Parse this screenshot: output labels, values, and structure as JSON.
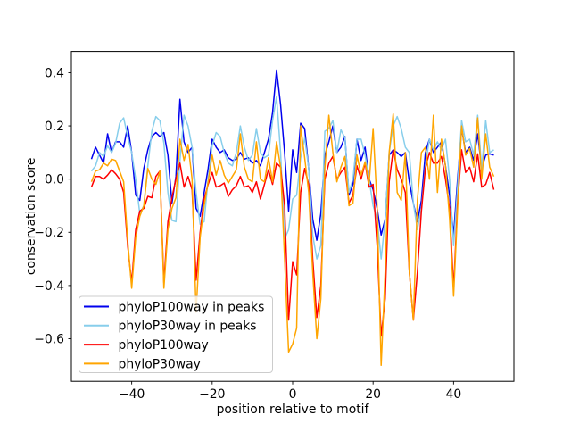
{
  "figure": {
    "background": "#ffffff",
    "frame_color": "#000000"
  },
  "legend": {
    "position": "lower left",
    "border_color": "#cccccc",
    "background": "#ffffff"
  },
  "chart_data": {
    "type": "line",
    "title": "",
    "xlabel": "position relative to motif",
    "ylabel": "conservation score",
    "xlim": [
      -55,
      55
    ],
    "ylim": [
      -0.76,
      0.48
    ],
    "xticks": [
      -40,
      -20,
      0,
      20,
      40
    ],
    "yticks": [
      0.4,
      0.2,
      0.0,
      -0.2,
      -0.4,
      -0.6
    ],
    "grid": false,
    "legend_position": "lower left",
    "x": [
      -50,
      -49,
      -48,
      -47,
      -46,
      -45,
      -44,
      -43,
      -42,
      -41,
      -40,
      -39,
      -38,
      -37,
      -36,
      -35,
      -34,
      -33,
      -32,
      -31,
      -30,
      -29,
      -28,
      -27,
      -26,
      -25,
      -24,
      -23,
      -22,
      -21,
      -20,
      -19,
      -18,
      -17,
      -16,
      -15,
      -14,
      -13,
      -12,
      -11,
      -10,
      -9,
      -8,
      -7,
      -6,
      -5,
      -4,
      -3,
      -2,
      -1,
      0,
      1,
      2,
      3,
      4,
      5,
      6,
      7,
      8,
      9,
      10,
      11,
      12,
      13,
      14,
      15,
      16,
      17,
      18,
      19,
      20,
      21,
      22,
      23,
      24,
      25,
      26,
      27,
      28,
      29,
      30,
      31,
      32,
      33,
      34,
      35,
      36,
      37,
      38,
      39,
      40,
      41,
      42,
      43,
      44,
      45,
      46,
      47,
      48,
      49,
      50
    ],
    "series": [
      {
        "name": "phyloP100way in peaks",
        "color": "#0000ee",
        "values": [
          0.075,
          0.12,
          0.09,
          0.06,
          0.17,
          0.1,
          0.14,
          0.14,
          0.12,
          0.2,
          0.1,
          -0.06,
          -0.08,
          0.04,
          0.11,
          0.16,
          0.175,
          0.16,
          0.175,
          0.09,
          -0.09,
          0.01,
          0.3,
          0.14,
          0.1,
          0.12,
          -0.11,
          -0.14,
          -0.05,
          0.04,
          0.15,
          0.12,
          0.1,
          0.11,
          0.08,
          0.07,
          0.075,
          0.1,
          0.075,
          0.08,
          0.06,
          0.07,
          0.05,
          0.1,
          0.15,
          0.25,
          0.41,
          0.28,
          0.1,
          -0.12,
          0.11,
          0.025,
          0.21,
          0.19,
          0.04,
          -0.15,
          -0.23,
          -0.13,
          0.09,
          0.14,
          0.2,
          0.1,
          0.12,
          0.16,
          -0.06,
          -0.02,
          0.15,
          0.07,
          0.12,
          0.0,
          -0.04,
          -0.11,
          -0.21,
          -0.15,
          0.09,
          0.11,
          0.1,
          0.085,
          0.1,
          -0.01,
          -0.09,
          -0.16,
          -0.08,
          0.1,
          0.15,
          0.1,
          0.12,
          0.14,
          0.05,
          -0.06,
          -0.21,
          0.0,
          0.19,
          0.1,
          0.12,
          0.07,
          0.17,
          0.04,
          0.09,
          0.095,
          0.09
        ]
      },
      {
        "name": "phyloP30way in peaks",
        "color": "#87ceeb",
        "values": [
          0.03,
          0.05,
          0.1,
          0.085,
          0.125,
          0.1,
          0.135,
          0.21,
          0.23,
          0.16,
          0.1,
          0.0,
          -0.13,
          -0.1,
          0.05,
          0.18,
          0.235,
          0.22,
          0.135,
          -0.05,
          -0.155,
          -0.16,
          0.07,
          0.24,
          0.2,
          0.12,
          -0.05,
          -0.17,
          -0.16,
          0.0,
          0.125,
          0.175,
          0.16,
          0.1,
          0.06,
          0.05,
          0.1,
          0.2,
          0.12,
          0.07,
          0.09,
          0.19,
          0.1,
          0.08,
          0.09,
          0.22,
          0.31,
          0.1,
          -0.225,
          -0.19,
          -0.075,
          -0.06,
          0.08,
          0.155,
          0.04,
          -0.21,
          -0.3,
          -0.25,
          0.18,
          0.19,
          0.22,
          0.1,
          0.185,
          0.155,
          -0.05,
          0.0,
          0.15,
          0.15,
          0.09,
          0.0,
          -0.1,
          -0.15,
          -0.3,
          -0.15,
          0.1,
          0.2,
          0.235,
          0.19,
          0.12,
          0.1,
          -0.09,
          -0.19,
          -0.11,
          0.05,
          0.15,
          0.11,
          0.14,
          0.11,
          0.15,
          0.0,
          -0.25,
          -0.03,
          0.22,
          0.14,
          0.15,
          0.09,
          0.24,
          0.04,
          0.22,
          0.1,
          0.11
        ]
      },
      {
        "name": "phyloP100way",
        "color": "#ff0000",
        "values": [
          -0.03,
          0.01,
          0.01,
          0.0,
          0.015,
          0.035,
          0.02,
          0.0,
          -0.05,
          -0.25,
          -0.39,
          -0.19,
          -0.12,
          -0.11,
          -0.065,
          -0.07,
          0.01,
          0.03,
          -0.39,
          -0.16,
          -0.07,
          0.0,
          0.06,
          -0.03,
          0.01,
          -0.04,
          -0.38,
          -0.2,
          -0.075,
          -0.02,
          0.025,
          -0.03,
          -0.025,
          -0.015,
          -0.065,
          -0.04,
          -0.025,
          0.01,
          -0.03,
          -0.025,
          -0.05,
          -0.01,
          -0.075,
          -0.02,
          0.035,
          -0.02,
          0.06,
          0.045,
          -0.1,
          -0.53,
          -0.31,
          -0.36,
          -0.05,
          0.04,
          -0.02,
          -0.3,
          -0.52,
          -0.4,
          0.0,
          0.06,
          0.085,
          0.0,
          0.025,
          0.045,
          -0.09,
          -0.06,
          0.05,
          0.0,
          0.06,
          -0.03,
          -0.02,
          -0.25,
          -0.59,
          -0.45,
          -0.01,
          0.11,
          0.035,
          0.0,
          -0.05,
          -0.35,
          -0.53,
          -0.35,
          -0.12,
          0.04,
          0.1,
          0.06,
          0.06,
          0.085,
          0.0,
          -0.11,
          -0.41,
          -0.09,
          0.11,
          0.025,
          0.045,
          -0.01,
          0.095,
          -0.03,
          -0.02,
          0.025,
          -0.04
        ]
      },
      {
        "name": "phyloP30way",
        "color": "#ffa500",
        "values": [
          -0.01,
          0.03,
          0.035,
          0.06,
          0.05,
          0.075,
          0.07,
          0.03,
          -0.01,
          -0.23,
          -0.41,
          -0.22,
          -0.14,
          -0.1,
          0.04,
          0.0,
          -0.02,
          0.03,
          -0.41,
          -0.19,
          -0.11,
          -0.07,
          0.15,
          0.07,
          0.13,
          0.0,
          -0.5,
          -0.22,
          -0.1,
          -0.01,
          0.09,
          0.015,
          0.07,
          0.015,
          -0.015,
          0.01,
          0.035,
          0.17,
          0.045,
          0.0,
          -0.01,
          0.14,
          0.0,
          -0.01,
          0.08,
          -0.01,
          0.14,
          0.045,
          -0.3,
          -0.65,
          -0.62,
          -0.56,
          0.2,
          0.08,
          -0.05,
          -0.35,
          -0.6,
          -0.45,
          0.04,
          0.24,
          0.1,
          -0.01,
          0.045,
          0.085,
          -0.1,
          -0.09,
          0.09,
          0.015,
          0.065,
          -0.015,
          0.19,
          -0.1,
          -0.7,
          -0.35,
          0.1,
          0.245,
          -0.05,
          -0.08,
          0.1,
          -0.35,
          -0.53,
          -0.08,
          0.1,
          0.12,
          0.0,
          0.24,
          -0.05,
          0.15,
          0.05,
          -0.15,
          -0.44,
          -0.11,
          0.2,
          0.09,
          0.115,
          0.045,
          0.23,
          0.0,
          0.17,
          0.045,
          0.01
        ]
      }
    ]
  }
}
